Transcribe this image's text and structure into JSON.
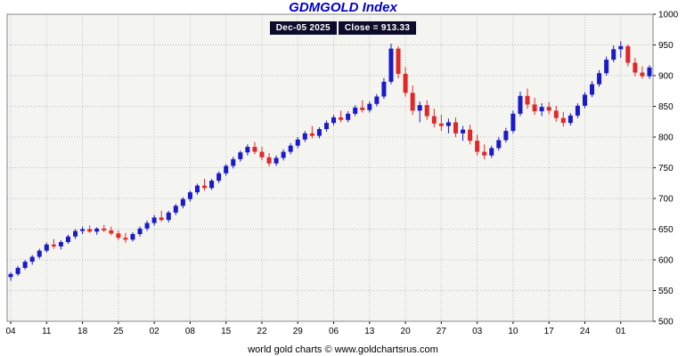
{
  "page_title": "GDMGOLD Index",
  "subtitle": {
    "date": "Dec-05 2025",
    "close": "Close = 913.33"
  },
  "footer": "world gold charts © www.goldchartsrus.com",
  "colors": {
    "title": "#0000cc",
    "up": "#1a1ac8",
    "down": "#e02828",
    "grid": "#bfbfbf",
    "plot_bg": "#f4f4f1",
    "border": "#888888",
    "axis_text": "#000000",
    "subtitle_bg": "#0d0d2b",
    "subtitle_fg": "#ffffff"
  },
  "chart_data": {
    "type": "candlestick",
    "title": "GDMGOLD Index",
    "subtitle": "Dec-05 2025  Close = 913.33",
    "last_close": 913.33,
    "ylim": [
      500,
      1000
    ],
    "y_tick_step": 50,
    "grid": true,
    "legend": "none",
    "y_axis_side": "right",
    "series_format": "open-high-low-close",
    "x_tick_labels": [
      "04",
      "11",
      "18",
      "25",
      "02",
      "08",
      "15",
      "22",
      "29",
      "06",
      "13",
      "20",
      "27",
      "03",
      "10",
      "17",
      "24",
      "01"
    ],
    "x_tick_indices": [
      0,
      5,
      10,
      15,
      20,
      25,
      30,
      35,
      40,
      45,
      50,
      55,
      60,
      65,
      70,
      75,
      80,
      85
    ],
    "ohlc": [
      [
        572,
        580,
        566,
        577
      ],
      [
        577,
        590,
        574,
        587
      ],
      [
        587,
        600,
        584,
        597
      ],
      [
        597,
        608,
        592,
        605
      ],
      [
        605,
        618,
        602,
        615
      ],
      [
        615,
        628,
        612,
        625
      ],
      [
        625,
        634,
        618,
        622
      ],
      [
        622,
        632,
        617,
        629
      ],
      [
        629,
        641,
        626,
        638
      ],
      [
        638,
        650,
        634,
        647
      ],
      [
        647,
        654,
        642,
        650
      ],
      [
        650,
        656,
        644,
        646
      ],
      [
        646,
        653,
        641,
        651
      ],
      [
        651,
        657,
        645,
        648
      ],
      [
        648,
        654,
        640,
        643
      ],
      [
        643,
        648,
        632,
        636
      ],
      [
        636,
        644,
        628,
        633
      ],
      [
        633,
        645,
        630,
        642
      ],
      [
        642,
        654,
        638,
        651
      ],
      [
        651,
        664,
        647,
        660
      ],
      [
        660,
        673,
        656,
        669
      ],
      [
        669,
        680,
        662,
        665
      ],
      [
        665,
        680,
        661,
        677
      ],
      [
        677,
        691,
        673,
        688
      ],
      [
        688,
        702,
        684,
        699
      ],
      [
        699,
        713,
        695,
        710
      ],
      [
        710,
        724,
        706,
        721
      ],
      [
        721,
        732,
        713,
        717
      ],
      [
        717,
        732,
        714,
        729
      ],
      [
        729,
        744,
        725,
        741
      ],
      [
        741,
        756,
        737,
        753
      ],
      [
        753,
        768,
        749,
        764
      ],
      [
        764,
        778,
        760,
        775
      ],
      [
        775,
        788,
        770,
        784
      ],
      [
        784,
        792,
        772,
        776
      ],
      [
        776,
        784,
        762,
        767
      ],
      [
        767,
        774,
        752,
        757
      ],
      [
        757,
        770,
        753,
        766
      ],
      [
        766,
        780,
        762,
        776
      ],
      [
        776,
        790,
        772,
        786
      ],
      [
        786,
        800,
        782,
        796
      ],
      [
        796,
        810,
        792,
        806
      ],
      [
        806,
        818,
        798,
        802
      ],
      [
        802,
        816,
        798,
        813
      ],
      [
        813,
        827,
        809,
        823
      ],
      [
        823,
        836,
        819,
        832
      ],
      [
        832,
        843,
        824,
        828
      ],
      [
        828,
        842,
        824,
        838
      ],
      [
        838,
        852,
        834,
        848
      ],
      [
        848,
        860,
        840,
        844
      ],
      [
        844,
        858,
        840,
        854
      ],
      [
        854,
        870,
        850,
        866
      ],
      [
        866,
        896,
        862,
        890
      ],
      [
        890,
        952,
        886,
        944
      ],
      [
        944,
        948,
        896,
        903
      ],
      [
        903,
        914,
        866,
        872
      ],
      [
        872,
        884,
        836,
        843
      ],
      [
        843,
        858,
        824,
        852
      ],
      [
        852,
        860,
        828,
        834
      ],
      [
        834,
        846,
        816,
        822
      ],
      [
        822,
        836,
        810,
        818
      ],
      [
        818,
        830,
        806,
        824
      ],
      [
        824,
        832,
        800,
        806
      ],
      [
        806,
        818,
        794,
        812
      ],
      [
        812,
        820,
        788,
        794
      ],
      [
        794,
        804,
        770,
        776
      ],
      [
        776,
        788,
        764,
        770
      ],
      [
        770,
        786,
        766,
        782
      ],
      [
        782,
        800,
        778,
        795
      ],
      [
        795,
        815,
        791,
        810
      ],
      [
        810,
        843,
        806,
        838
      ],
      [
        838,
        874,
        834,
        867
      ],
      [
        867,
        879,
        846,
        853
      ],
      [
        853,
        864,
        836,
        842
      ],
      [
        842,
        855,
        834,
        849
      ],
      [
        849,
        857,
        837,
        843
      ],
      [
        843,
        851,
        825,
        831
      ],
      [
        831,
        841,
        817,
        823
      ],
      [
        823,
        839,
        819,
        835
      ],
      [
        835,
        855,
        831,
        851
      ],
      [
        851,
        873,
        847,
        869
      ],
      [
        869,
        891,
        865,
        886
      ],
      [
        886,
        909,
        882,
        904
      ],
      [
        904,
        931,
        900,
        926
      ],
      [
        926,
        949,
        922,
        943
      ],
      [
        943,
        956,
        929,
        948
      ],
      [
        948,
        951,
        915,
        921
      ],
      [
        921,
        929,
        899,
        905
      ],
      [
        905,
        915,
        895,
        899
      ],
      [
        899,
        917,
        895,
        913.33
      ]
    ]
  }
}
